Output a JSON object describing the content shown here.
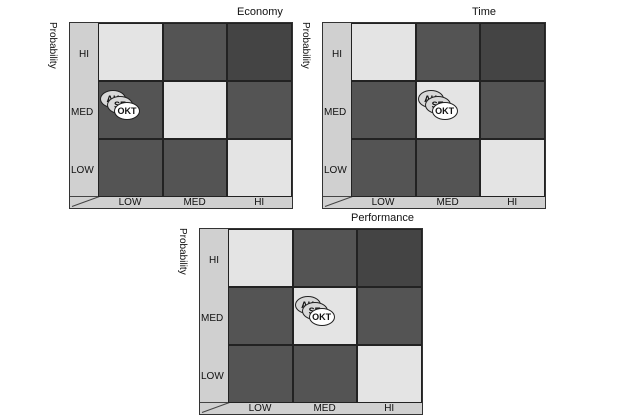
{
  "y_axis_label": "Probability",
  "row_labels": [
    "HI",
    "MED",
    "LOW"
  ],
  "col_labels": [
    "LOW",
    "MED",
    "HI"
  ],
  "bubble_labels": [
    "AK",
    "SE",
    "OKT"
  ],
  "colors": {
    "light": "#e4e4e4",
    "dark": "#545454",
    "darker": "#444444",
    "bubble": "#d8d8d8"
  },
  "matrices": [
    {
      "title": "Economy",
      "cells": [
        [
          "light",
          "dark",
          "darker"
        ],
        [
          "dark",
          "light",
          "dark"
        ],
        [
          "dark",
          "dark",
          "light"
        ]
      ],
      "bubbles_at": {
        "row": "MED",
        "col": "LOW"
      }
    },
    {
      "title": "Time",
      "cells": [
        [
          "light",
          "dark",
          "darker"
        ],
        [
          "dark",
          "light",
          "dark"
        ],
        [
          "dark",
          "dark",
          "light"
        ]
      ],
      "bubbles_at": {
        "row": "MED",
        "col": "MED"
      }
    },
    {
      "title": "Performance",
      "cells": [
        [
          "light",
          "dark",
          "darker"
        ],
        [
          "dark",
          "light",
          "dark"
        ],
        [
          "dark",
          "dark",
          "light"
        ]
      ],
      "bubbles_at": {
        "row": "MED",
        "col": "MED"
      }
    }
  ]
}
